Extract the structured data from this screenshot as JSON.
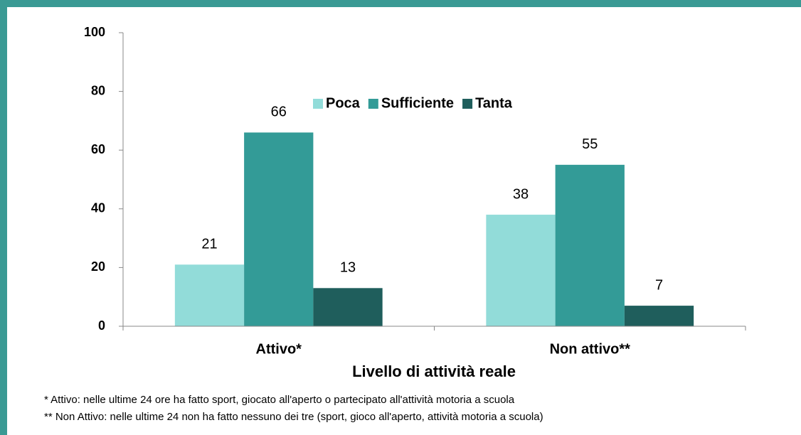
{
  "chart_data": {
    "type": "bar",
    "x_label": "Livello di attività reale",
    "categories": [
      "Attivo*",
      "Non attivo**"
    ],
    "series": [
      {
        "name": "Poca",
        "color": "#92dcd9",
        "values": [
          21,
          38
        ]
      },
      {
        "name": "Sufficiente",
        "color": "#339b97",
        "values": [
          66,
          55
        ]
      },
      {
        "name": "Tanta",
        "color": "#1f5e5c",
        "values": [
          13,
          7
        ]
      }
    ],
    "ylim": [
      0,
      100
    ],
    "yticks": [
      0,
      20,
      40,
      60,
      80,
      100
    ],
    "grid": false,
    "legend": "top",
    "notes": [
      "* Attivo: nelle ultime 24 ore ha fatto sport, giocato all'aperto o partecipato all'attività motoria a scuola",
      "** Non Attivo: nelle ultime 24 non ha fatto nessuno dei tre (sport, gioco all'aperto, attività motoria a scuola)"
    ]
  }
}
